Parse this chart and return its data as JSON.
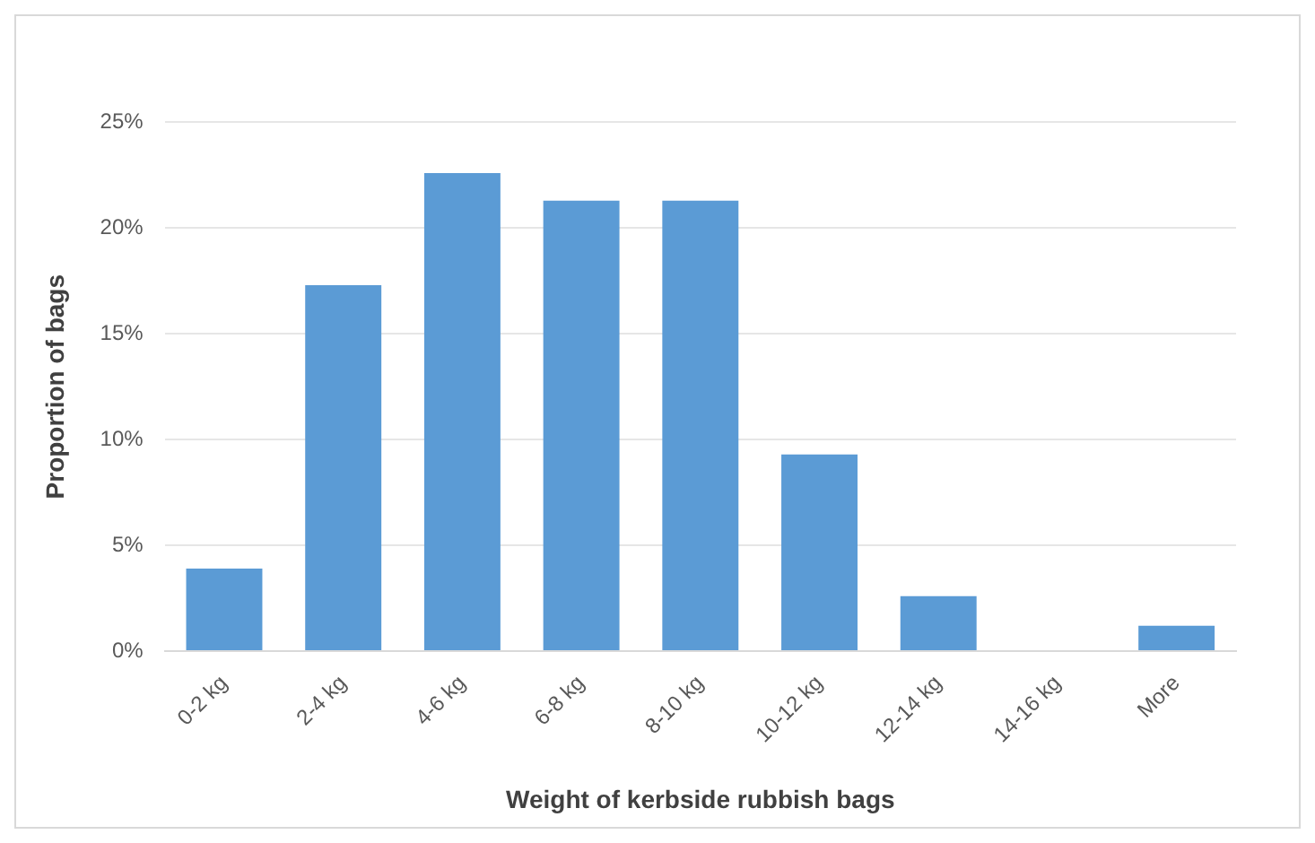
{
  "chart_data": {
    "type": "bar",
    "xlabel": "Weight of kerbside rubbish bags",
    "ylabel": "Proportion of bags",
    "categories": [
      "0-2 kg",
      "2-4 kg",
      "4-6 kg",
      "6-8 kg",
      "8-10 kg",
      "10-12 kg",
      "12-14 kg",
      "14-16 kg",
      "More"
    ],
    "values": [
      3.9,
      17.3,
      22.6,
      21.3,
      21.3,
      9.3,
      2.6,
      0,
      1.2
    ],
    "color": "#5b9bd5",
    "ylim": [
      0,
      25
    ],
    "yticks": [
      {
        "value": 0,
        "label": "0%"
      },
      {
        "value": 5,
        "label": "5%"
      },
      {
        "value": 10,
        "label": "10%"
      },
      {
        "value": 15,
        "label": "15%"
      },
      {
        "value": 20,
        "label": "20%"
      },
      {
        "value": 25,
        "label": "25%"
      }
    ],
    "grid": "y",
    "legend": false
  }
}
